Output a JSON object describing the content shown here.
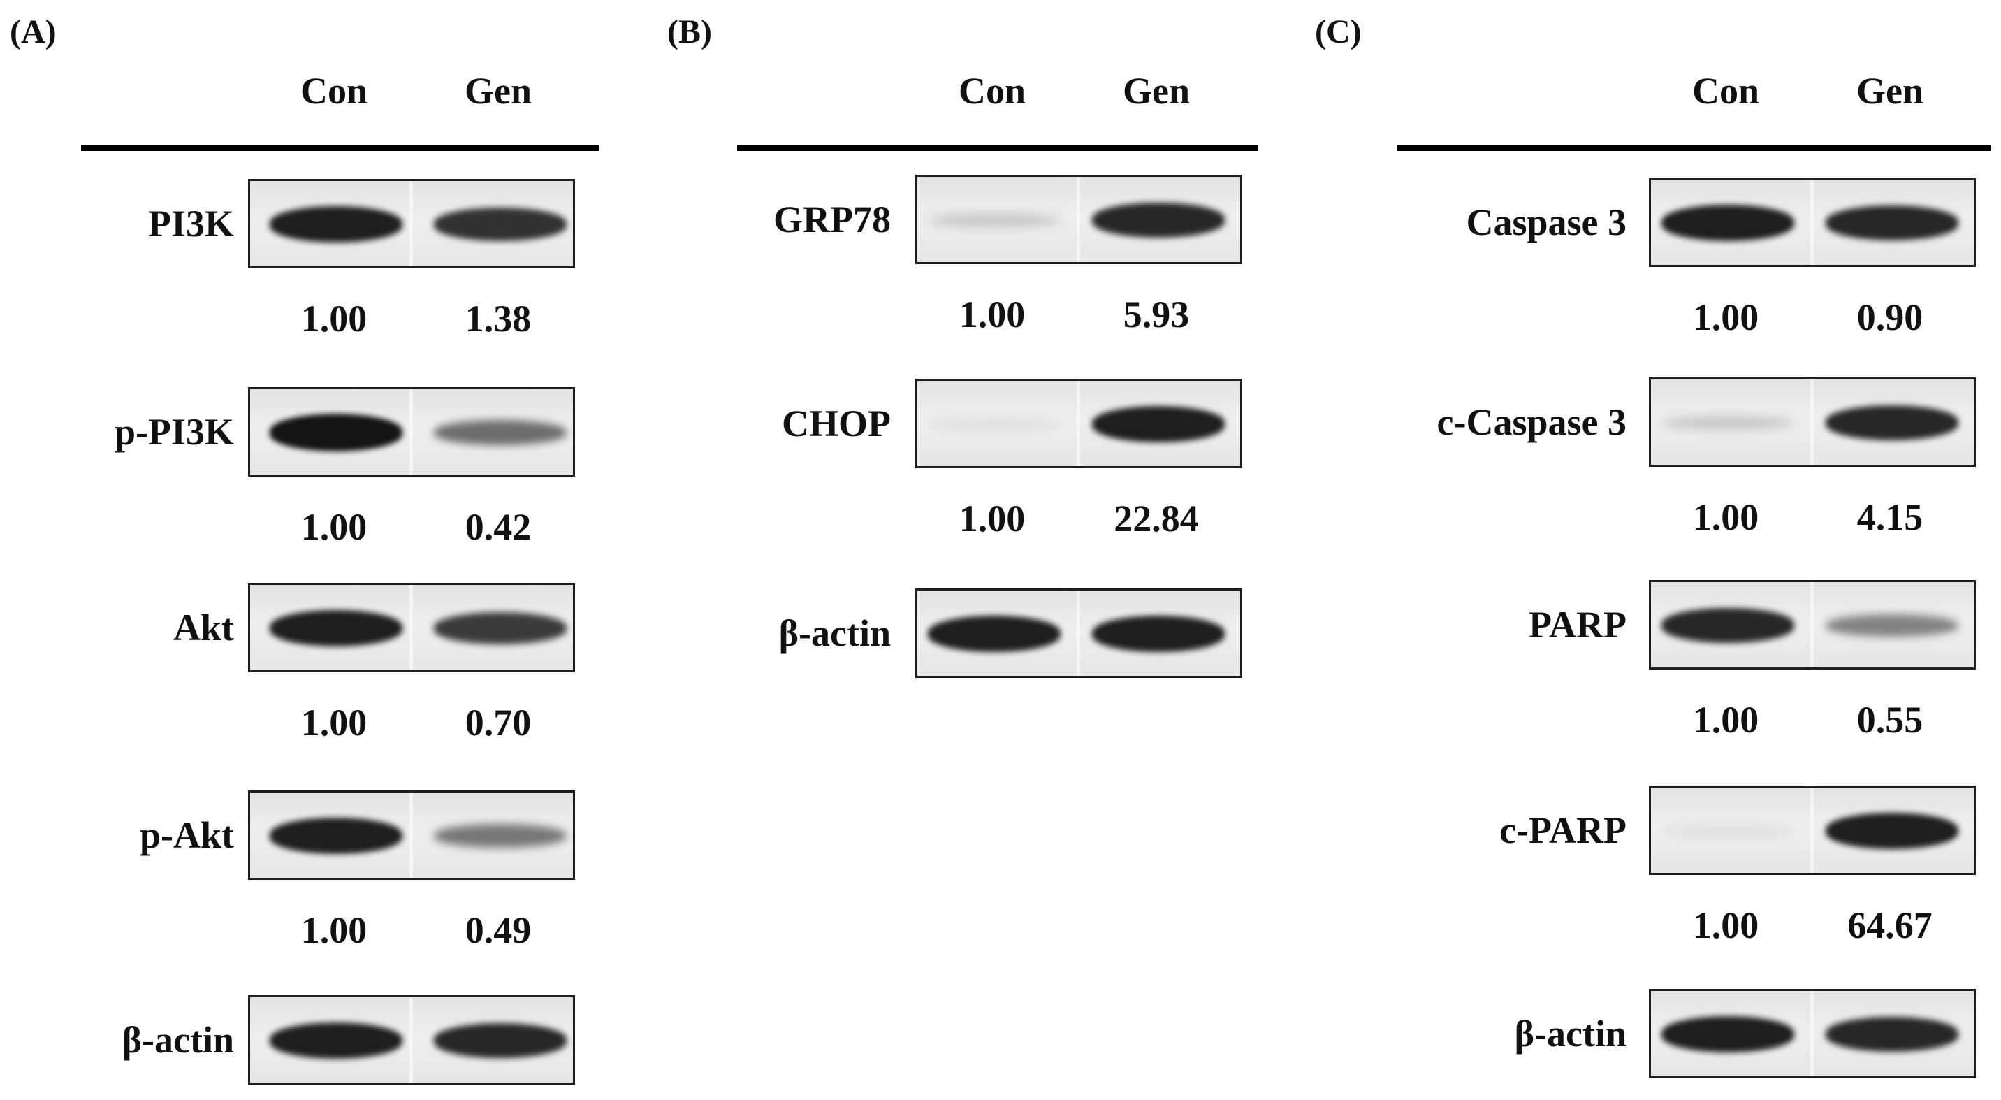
{
  "panels": [
    {
      "letter": "(A)",
      "lanes": [
        "Con",
        "Gen"
      ],
      "rows": [
        {
          "label": "PI3K",
          "ratios": [
            "1.00",
            "1.38"
          ],
          "bands": [
            0.95,
            0.85
          ]
        },
        {
          "label": "p-PI3K",
          "ratios": [
            "1.00",
            "0.42"
          ],
          "bands": [
            1.0,
            0.55
          ]
        },
        {
          "label": "Akt",
          "ratios": [
            "1.00",
            "0.70"
          ],
          "bands": [
            0.95,
            0.8
          ]
        },
        {
          "label": "p-Akt",
          "ratios": [
            "1.00",
            "0.49"
          ],
          "bands": [
            0.95,
            0.5
          ]
        },
        {
          "label": "β-actin",
          "ratios": null,
          "bands": [
            0.95,
            0.9
          ]
        }
      ]
    },
    {
      "letter": "(B)",
      "lanes": [
        "Con",
        "Gen"
      ],
      "rows": [
        {
          "label": "GRP78",
          "ratios": [
            "1.00",
            "5.93"
          ],
          "bands": [
            0.12,
            0.9
          ]
        },
        {
          "label": "CHOP",
          "ratios": [
            "1.00",
            "22.84"
          ],
          "bands": [
            0.0,
            0.95
          ]
        },
        {
          "label": "β-actin",
          "ratios": null,
          "bands": [
            0.95,
            0.95
          ]
        }
      ]
    },
    {
      "letter": "(C)",
      "lanes": [
        "Con",
        "Gen"
      ],
      "rows": [
        {
          "label": "Caspase 3",
          "ratios": [
            "1.00",
            "0.90"
          ],
          "bands": [
            0.95,
            0.9
          ]
        },
        {
          "label": "c-Caspase 3",
          "ratios": [
            "1.00",
            "4.15"
          ],
          "bands": [
            0.12,
            0.9
          ]
        },
        {
          "label": "PARP",
          "ratios": [
            "1.00",
            "0.55"
          ],
          "bands": [
            0.9,
            0.45
          ]
        },
        {
          "label": "c-PARP",
          "ratios": [
            "1.00",
            "64.67"
          ],
          "bands": [
            0.0,
            0.95
          ]
        },
        {
          "label": "β-actin",
          "ratios": null,
          "bands": [
            0.95,
            0.9
          ]
        }
      ]
    }
  ]
}
